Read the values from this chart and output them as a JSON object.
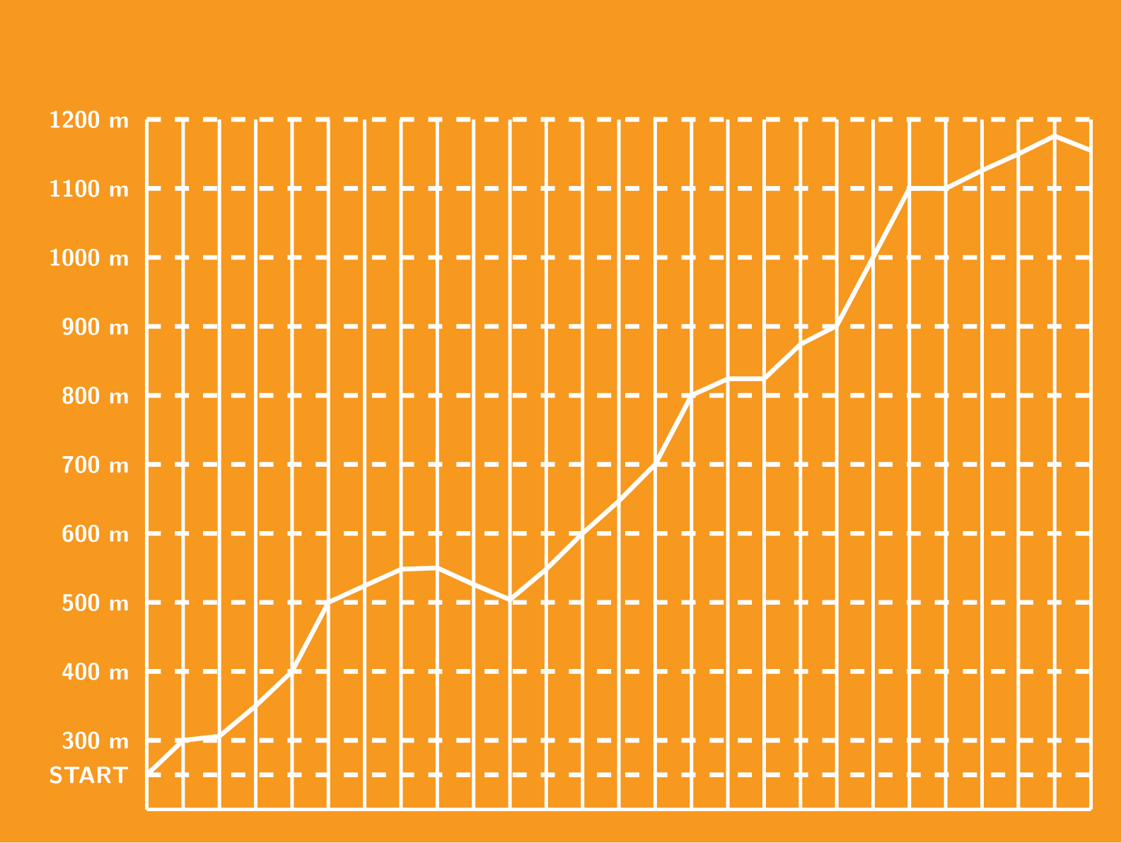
{
  "chart_data": {
    "type": "line",
    "categories": [
      null,
      null,
      null,
      null,
      null,
      null,
      null,
      null,
      null,
      null,
      null,
      null,
      null,
      null,
      null,
      null,
      null,
      null,
      null,
      null,
      null,
      null,
      null,
      null,
      null,
      null,
      null
    ],
    "series": [
      {
        "color": "#ffffff",
        "values": [
          250,
          300,
          306,
          350,
          400,
          500,
          524,
          548,
          550,
          526,
          504,
          548,
          600,
          647,
          700,
          800,
          824,
          824,
          874,
          901,
          1000,
          1100,
          1100,
          1126,
          1150,
          1176,
          1155
        ]
      }
    ],
    "ylim": [
      200,
      1200
    ],
    "yticks": [
      {
        "value": 250,
        "label": "START"
      },
      {
        "value": 300,
        "label": "300 m"
      },
      {
        "value": 400,
        "label": "400 m"
      },
      {
        "value": 500,
        "label": "500 m"
      },
      {
        "value": 600,
        "label": "600 m"
      },
      {
        "value": 700,
        "label": "700 m"
      },
      {
        "value": 800,
        "label": "800 m"
      },
      {
        "value": 900,
        "label": "900 m"
      },
      {
        "value": 1000,
        "label": "1000 m"
      },
      {
        "value": 1100,
        "label": "1100 m"
      },
      {
        "value": 1200,
        "label": "1200 m"
      }
    ],
    "tick_labels": "y",
    "grid": true,
    "marker": "none",
    "line_style": "solid"
  }
}
